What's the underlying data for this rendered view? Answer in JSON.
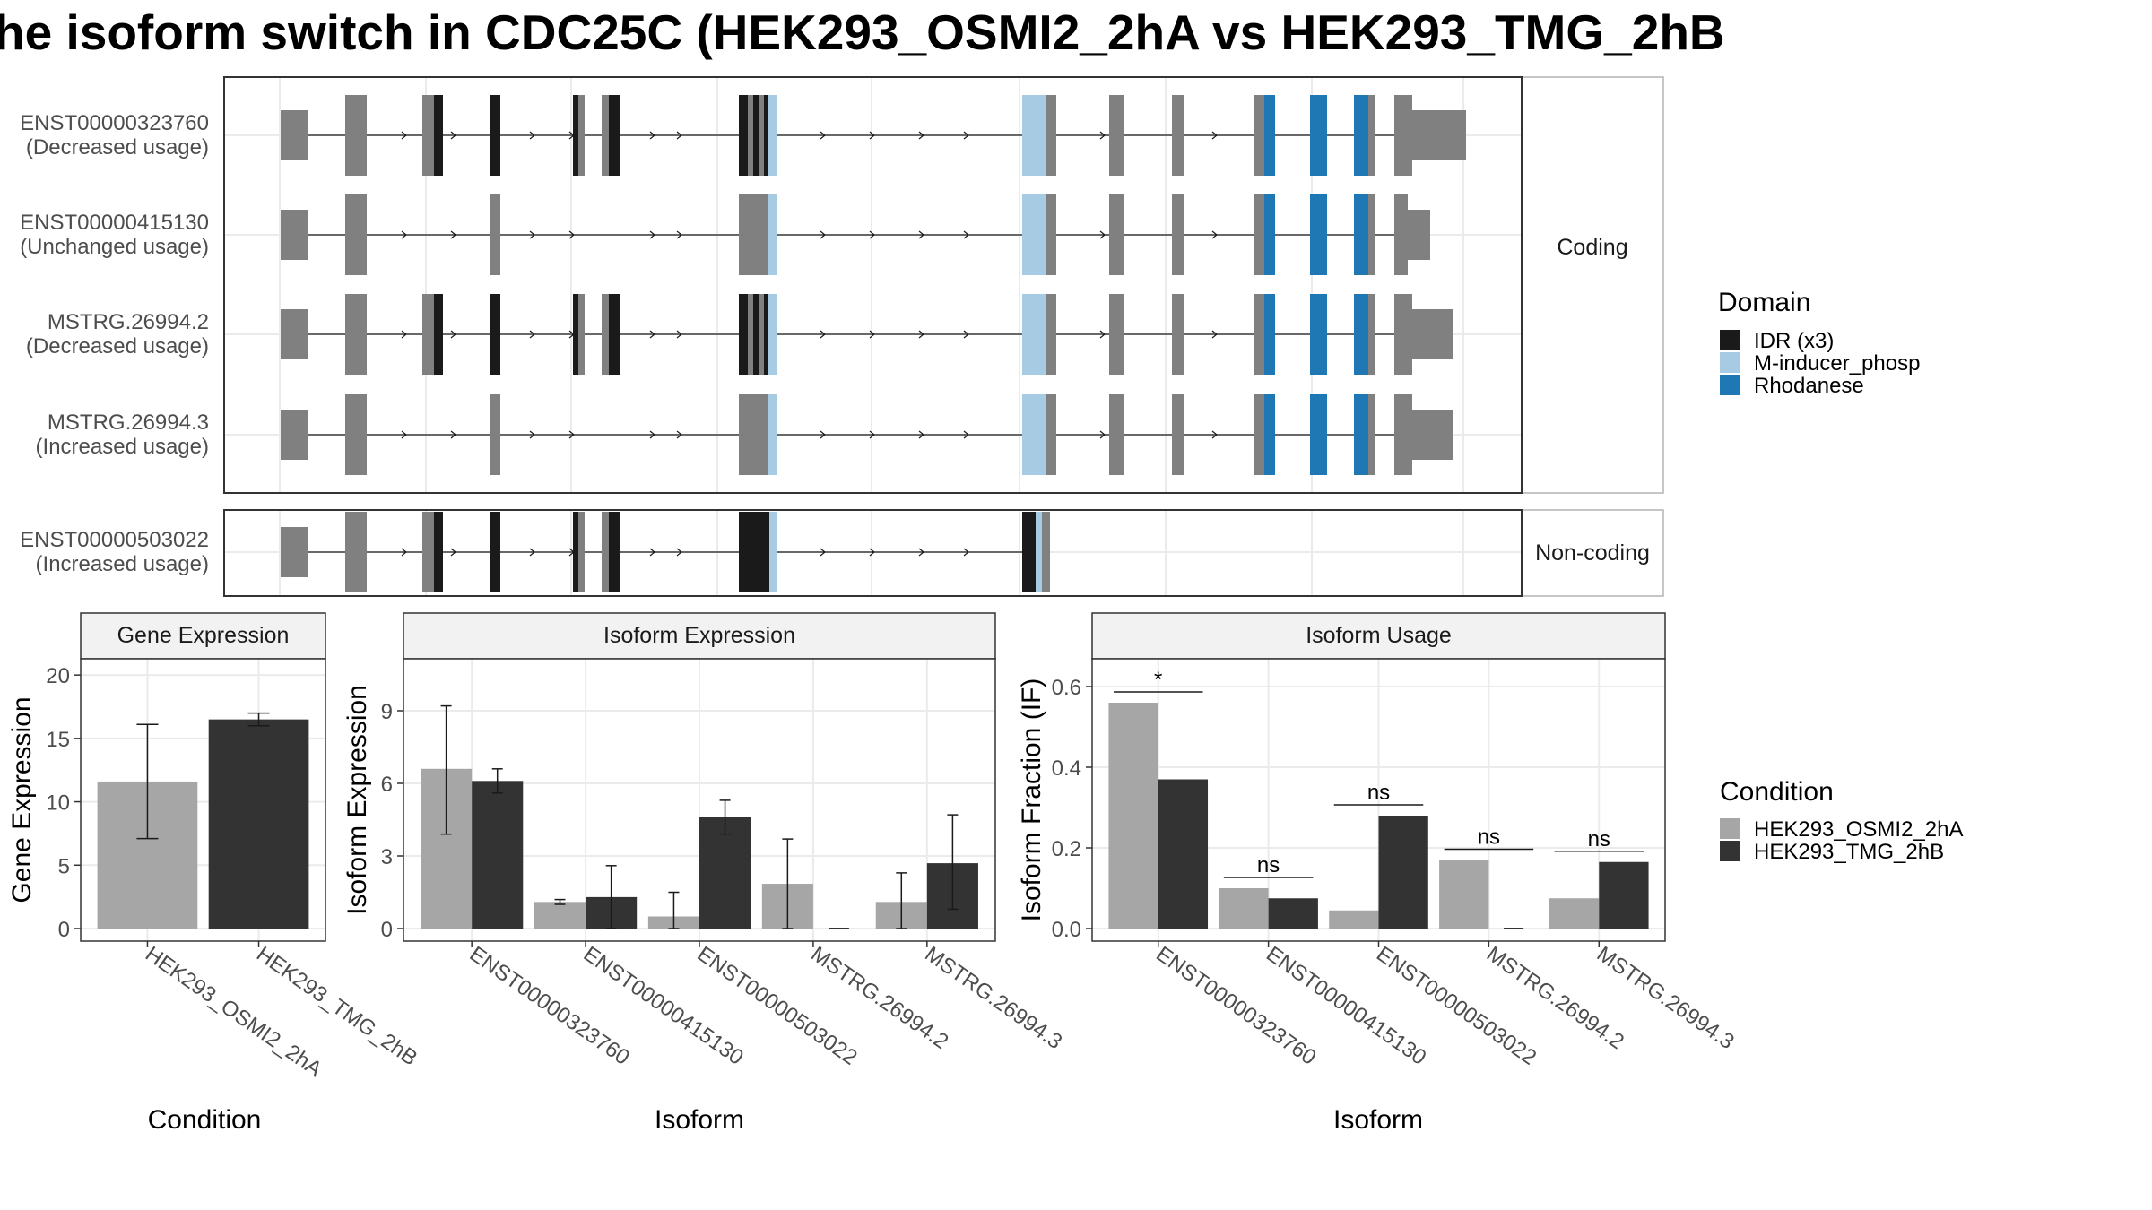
{
  "title": "he isoform switch in CDC25C (HEK293_OSMI2_2hA vs HEK293_TMG_2hB",
  "colors": {
    "exon": "#808080",
    "idr": "#1a1a1a",
    "m_inducer": "#a6cbe3",
    "rhodanese": "#1f78b4",
    "cond_a": "#a6a6a6",
    "cond_b": "#333333",
    "strip": "#f2f2f2",
    "grid": "#ebebeb"
  },
  "structure": {
    "group_labels": [
      "Coding",
      "Non-coding"
    ],
    "transcripts": [
      {
        "id": "ENST00000323760",
        "usage": "(Decreased usage)",
        "group": "Coding"
      },
      {
        "id": "ENST00000415130",
        "usage": "(Unchanged usage)",
        "group": "Coding"
      },
      {
        "id": "MSTRG.26994.2",
        "usage": "(Decreased usage)",
        "group": "Coding"
      },
      {
        "id": "MSTRG.26994.3",
        "usage": "(Increased usage)",
        "group": "Coding"
      },
      {
        "id": "ENST00000503022",
        "usage": "(Increased usage)",
        "group": "Non-coding"
      }
    ],
    "domain_legend_title": "Domain",
    "domains": [
      {
        "name": "IDR (x3)",
        "color": "#1a1a1a"
      },
      {
        "name": "M-inducer_phosp",
        "color": "#a6cbe3"
      },
      {
        "name": "Rhodanese",
        "color": "#1f78b4"
      }
    ]
  },
  "chart_data": [
    {
      "type": "bar",
      "title": "Gene Expression",
      "xlabel": "Condition",
      "ylabel": "Gene Expression",
      "categories": [
        "HEK293_OSMI2_2hA",
        "HEK293_TMG_2hB"
      ],
      "values": [
        11.6,
        16.5
      ],
      "error_low": [
        7.1,
        16.0
      ],
      "error_high": [
        16.1,
        17.0
      ],
      "ylim": [
        0,
        21
      ],
      "yticks": [
        0,
        5,
        10,
        15,
        20
      ]
    },
    {
      "type": "bar",
      "title": "Isoform Expression",
      "xlabel": "Isoform",
      "ylabel": "Isoform Expression",
      "categories": [
        "ENST00000323760",
        "ENST00000415130",
        "ENST00000503022",
        "MSTRG.26994.2",
        "MSTRG.26994.3"
      ],
      "series": [
        {
          "name": "HEK293_OSMI2_2hA",
          "values": [
            6.6,
            1.1,
            0.5,
            1.85,
            1.1
          ],
          "error_low": [
            3.9,
            1.0,
            0.0,
            0.0,
            0.0
          ],
          "error_high": [
            9.2,
            1.2,
            1.5,
            3.7,
            2.3
          ]
        },
        {
          "name": "HEK293_TMG_2hB",
          "values": [
            6.1,
            1.3,
            4.6,
            0.0,
            2.7
          ],
          "error_low": [
            5.6,
            0.0,
            3.9,
            0.0,
            0.8
          ],
          "error_high": [
            6.6,
            2.6,
            5.3,
            0.0,
            4.7
          ]
        }
      ],
      "ylim": [
        0,
        11
      ],
      "yticks": [
        0,
        3,
        6,
        9
      ]
    },
    {
      "type": "bar",
      "title": "Isoform Usage",
      "xlabel": "Isoform",
      "ylabel": "Isoform Fraction (IF)",
      "categories": [
        "ENST00000323760",
        "ENST00000415130",
        "ENST00000503022",
        "MSTRG.26994.2",
        "MSTRG.26994.3"
      ],
      "series": [
        {
          "name": "HEK293_OSMI2_2hA",
          "values": [
            0.56,
            0.1,
            0.045,
            0.17,
            0.075
          ]
        },
        {
          "name": "HEK293_TMG_2hB",
          "values": [
            0.37,
            0.075,
            0.28,
            0.0,
            0.165
          ]
        }
      ],
      "significance": [
        "*",
        "ns",
        "ns",
        "ns",
        "ns"
      ],
      "ylim": [
        0,
        0.66
      ],
      "yticks": [
        0.0,
        0.2,
        0.4,
        0.6
      ]
    }
  ],
  "condition_legend": {
    "title": "Condition",
    "items": [
      {
        "name": "HEK293_OSMI2_2hA",
        "color": "#a6a6a6"
      },
      {
        "name": "HEK293_TMG_2hB",
        "color": "#333333"
      }
    ]
  }
}
